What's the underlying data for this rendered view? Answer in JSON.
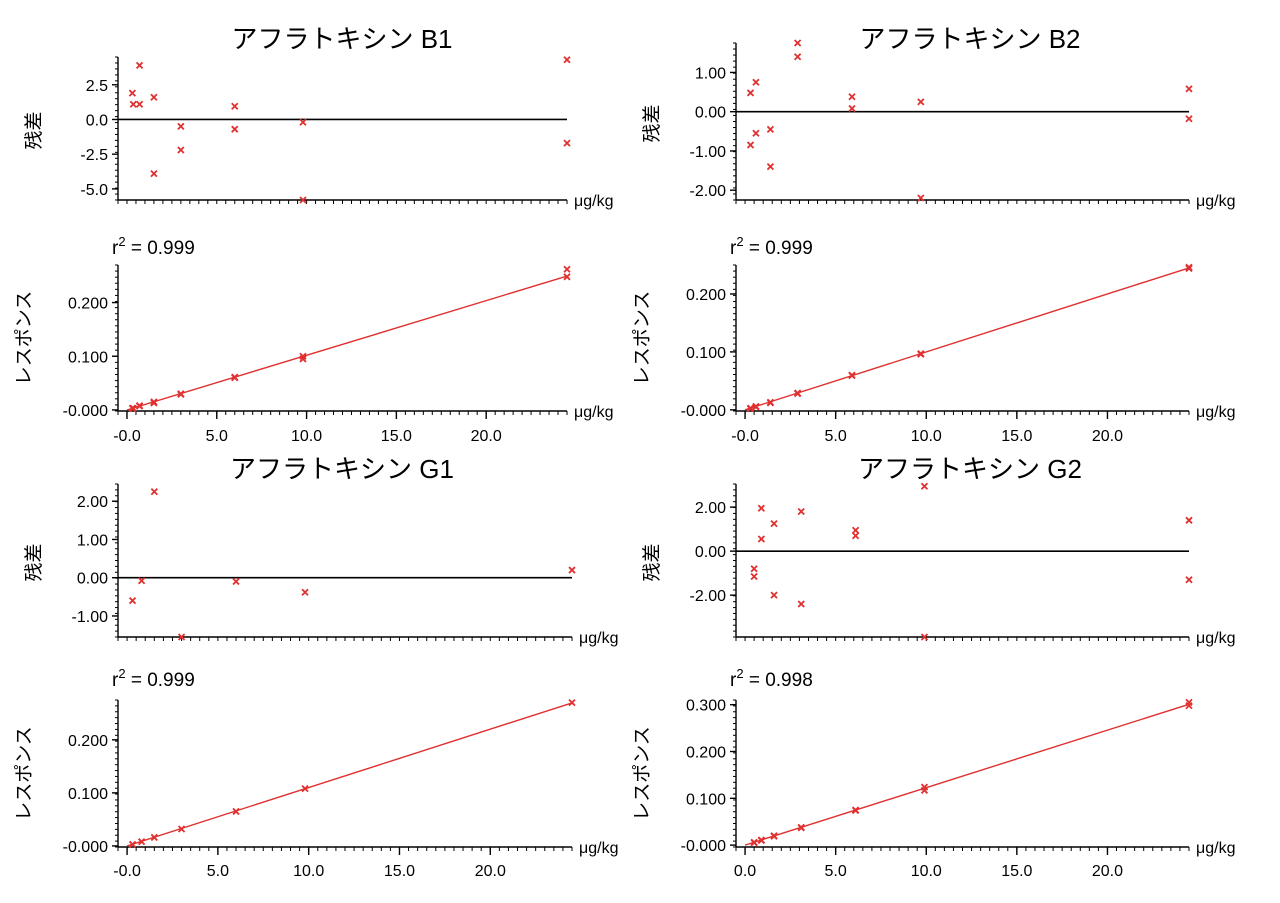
{
  "colors": {
    "marker": "#e03030",
    "fit_line": "#e03030",
    "axis": "#000000",
    "zero_line": "#000000"
  },
  "chart_data": [
    {
      "id": "b1",
      "title": "アフラトキシン B1",
      "residual": {
        "type": "scatter",
        "ylabel": "残差",
        "unit": "μg/kg",
        "ylim": [
          -5.8,
          4.5
        ],
        "yticks": [
          -5.0,
          -2.5,
          0.0,
          2.5
        ],
        "ytick_labels": [
          "-5.0",
          "-2.5",
          "0.0",
          "2.5"
        ],
        "zero_line": true,
        "points": [
          [
            0.3,
            1.9
          ],
          [
            0.35,
            1.1
          ],
          [
            0.7,
            1.1
          ],
          [
            0.7,
            3.9
          ],
          [
            1.5,
            1.6
          ],
          [
            1.5,
            -3.9
          ],
          [
            3.0,
            -0.5
          ],
          [
            3.0,
            -2.2
          ],
          [
            6.0,
            0.95
          ],
          [
            6.0,
            -0.7
          ],
          [
            9.8,
            -0.2
          ],
          [
            9.8,
            -5.8
          ],
          [
            24.5,
            4.3
          ],
          [
            24.5,
            -1.7
          ]
        ]
      },
      "calibration": {
        "type": "scatter",
        "ylabel": "レスポンス",
        "unit": "μg/kg",
        "r2_prefix": "r",
        "r2_sup": "2",
        "r2_value": " = 0.999",
        "xlim": [
          -0.5,
          24.5
        ],
        "ylim": [
          -0.002,
          0.27
        ],
        "xticks": [
          0.0,
          5.0,
          10.0,
          15.0,
          20.0
        ],
        "xtick_labels": [
          "-0.0",
          "5.0",
          "10.0",
          "15.0",
          "20.0"
        ],
        "yticks": [
          0.0,
          0.1,
          0.2
        ],
        "ytick_labels": [
          "-0.000",
          "0.100",
          "0.200"
        ],
        "fit": {
          "slope": 0.01018,
          "intercept": 0.0
        },
        "points": [
          [
            0.3,
            0.003
          ],
          [
            0.35,
            0.003
          ],
          [
            0.7,
            0.007
          ],
          [
            0.7,
            0.008
          ],
          [
            1.5,
            0.015
          ],
          [
            1.5,
            0.013
          ],
          [
            3.0,
            0.03
          ],
          [
            3.0,
            0.029
          ],
          [
            6.0,
            0.061
          ],
          [
            6.0,
            0.06
          ],
          [
            9.8,
            0.1
          ],
          [
            9.8,
            0.095
          ],
          [
            24.5,
            0.262
          ],
          [
            24.5,
            0.248
          ]
        ]
      }
    },
    {
      "id": "b2",
      "title": "アフラトキシン B2",
      "residual": {
        "type": "scatter",
        "ylabel": "残差",
        "unit": "μg/kg",
        "ylim": [
          -2.25,
          1.75
        ],
        "yticks": [
          -2.0,
          -1.0,
          0.0,
          1.0
        ],
        "ytick_labels": [
          "-2.00",
          "-1.00",
          "0.00",
          "1.00"
        ],
        "zero_line": true,
        "points": [
          [
            0.3,
            0.48
          ],
          [
            0.3,
            -0.85
          ],
          [
            0.6,
            0.75
          ],
          [
            0.6,
            -0.55
          ],
          [
            1.4,
            -0.45
          ],
          [
            1.4,
            -1.4
          ],
          [
            2.9,
            1.75
          ],
          [
            2.9,
            1.4
          ],
          [
            5.9,
            0.38
          ],
          [
            5.9,
            0.08
          ],
          [
            9.7,
            0.25
          ],
          [
            9.7,
            -2.2
          ],
          [
            24.5,
            0.58
          ],
          [
            24.5,
            -0.18
          ]
        ]
      },
      "calibration": {
        "type": "scatter",
        "ylabel": "レスポンス",
        "unit": "μg/kg",
        "r2_prefix": "r",
        "r2_sup": "2",
        "r2_value": " = 0.999",
        "xlim": [
          -0.5,
          24.5
        ],
        "ylim": [
          -0.002,
          0.25
        ],
        "xticks": [
          0.0,
          5.0,
          10.0,
          15.0,
          20.0
        ],
        "xtick_labels": [
          "-0.0",
          "5.0",
          "10.0",
          "15.0",
          "20.0"
        ],
        "yticks": [
          0.0,
          0.1,
          0.2
        ],
        "ytick_labels": [
          "-0.000",
          "0.100",
          "0.200"
        ],
        "fit": {
          "slope": 0.01,
          "intercept": 0.0
        },
        "points": [
          [
            0.3,
            0.003
          ],
          [
            0.3,
            0.002
          ],
          [
            0.6,
            0.006
          ],
          [
            0.6,
            0.005
          ],
          [
            1.4,
            0.013
          ],
          [
            1.4,
            0.012
          ],
          [
            2.9,
            0.029
          ],
          [
            2.9,
            0.028
          ],
          [
            5.9,
            0.06
          ],
          [
            5.9,
            0.059
          ],
          [
            9.7,
            0.097
          ],
          [
            9.7,
            0.096
          ],
          [
            24.5,
            0.246
          ],
          [
            24.5,
            0.244
          ]
        ]
      }
    },
    {
      "id": "g1",
      "title": "アフラトキシン G1",
      "residual": {
        "type": "scatter",
        "ylabel": "残差",
        "unit": "μg/kg",
        "ylim": [
          -1.55,
          2.45
        ],
        "yticks": [
          -1.0,
          0.0,
          1.0,
          2.0
        ],
        "ytick_labels": [
          "-1.00",
          "0.00",
          "1.00",
          "2.00"
        ],
        "zero_line": true,
        "points": [
          [
            0.3,
            -0.6
          ],
          [
            0.8,
            -0.08
          ],
          [
            1.5,
            2.25
          ],
          [
            3.0,
            -1.55
          ],
          [
            6.0,
            -0.1
          ],
          [
            9.8,
            -0.38
          ],
          [
            24.5,
            0.2
          ]
        ]
      },
      "calibration": {
        "type": "scatter",
        "ylabel": "レスポンス",
        "unit": "μg/kg",
        "r2_prefix": "r",
        "r2_sup": "2",
        "r2_value": " = 0.999",
        "xlim": [
          -0.5,
          24.5
        ],
        "ylim": [
          -0.002,
          0.275
        ],
        "xticks": [
          0.0,
          5.0,
          10.0,
          15.0,
          20.0
        ],
        "xtick_labels": [
          "-0.0",
          "5.0",
          "10.0",
          "15.0",
          "20.0"
        ],
        "yticks": [
          0.0,
          0.1,
          0.2
        ],
        "ytick_labels": [
          "-0.000",
          "0.100",
          "0.200"
        ],
        "fit": {
          "slope": 0.011,
          "intercept": 0.0
        },
        "points": [
          [
            0.3,
            0.003
          ],
          [
            0.8,
            0.008
          ],
          [
            1.5,
            0.016
          ],
          [
            3.0,
            0.032
          ],
          [
            6.0,
            0.065
          ],
          [
            9.8,
            0.108
          ],
          [
            24.5,
            0.27
          ]
        ]
      }
    },
    {
      "id": "g2",
      "title": "アフラトキシン G2",
      "residual": {
        "type": "scatter",
        "ylabel": "残差",
        "unit": "μg/kg",
        "ylim": [
          -3.9,
          3.05
        ],
        "yticks": [
          -2.0,
          0.0,
          2.0
        ],
        "ytick_labels": [
          "-2.00",
          "0.00",
          "2.00"
        ],
        "zero_line": true,
        "points": [
          [
            0.5,
            -0.8
          ],
          [
            0.5,
            -1.15
          ],
          [
            0.9,
            1.95
          ],
          [
            0.9,
            0.55
          ],
          [
            1.6,
            1.25
          ],
          [
            1.6,
            -2.0
          ],
          [
            3.1,
            1.8
          ],
          [
            3.1,
            -2.4
          ],
          [
            6.1,
            0.95
          ],
          [
            6.1,
            0.7
          ],
          [
            9.9,
            2.95
          ],
          [
            9.9,
            -3.9
          ],
          [
            24.5,
            1.4
          ],
          [
            24.5,
            -1.3
          ]
        ]
      },
      "calibration": {
        "type": "scatter",
        "ylabel": "レスポンス",
        "unit": "μg/kg",
        "r2_prefix": "r",
        "r2_sup": "2",
        "r2_value": " = 0.998",
        "xlim": [
          -0.5,
          24.5
        ],
        "ylim": [
          -0.004,
          0.31
        ],
        "xticks": [
          0.0,
          5.0,
          10.0,
          15.0,
          20.0
        ],
        "xtick_labels": [
          "0.0",
          "5.0",
          "10.0",
          "15.0",
          "20.0"
        ],
        "yticks": [
          0.0,
          0.1,
          0.2,
          0.3
        ],
        "ytick_labels": [
          "-0.000",
          "0.100",
          "0.200",
          "0.300"
        ],
        "fit": {
          "slope": 0.01228,
          "intercept": 0.0
        },
        "points": [
          [
            0.5,
            0.006
          ],
          [
            0.5,
            0.005
          ],
          [
            0.9,
            0.011
          ],
          [
            0.9,
            0.01
          ],
          [
            1.6,
            0.02
          ],
          [
            1.6,
            0.019
          ],
          [
            3.1,
            0.038
          ],
          [
            3.1,
            0.037
          ],
          [
            6.1,
            0.075
          ],
          [
            6.1,
            0.074
          ],
          [
            9.9,
            0.124
          ],
          [
            9.9,
            0.117
          ],
          [
            24.5,
            0.305
          ],
          [
            24.5,
            0.298
          ]
        ]
      }
    }
  ]
}
